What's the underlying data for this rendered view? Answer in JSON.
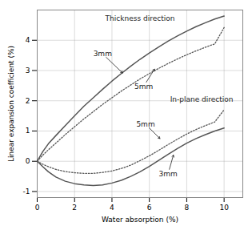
{
  "chart_data": {
    "type": "line",
    "xlabel": "Water absorption (%)",
    "ylabel": "Linear expansion coefficient (%)",
    "xlim": [
      0,
      11
    ],
    "ylim": [
      -1.2,
      5.0
    ],
    "xticks": [
      0,
      2,
      4,
      6,
      8,
      10
    ],
    "yticks": [
      -1,
      0,
      1,
      2,
      3,
      4
    ],
    "grid": true,
    "x": [
      0,
      0.3,
      0.6,
      1.0,
      1.5,
      2.0,
      2.5,
      3.0,
      3.5,
      4.0,
      4.5,
      5.0,
      5.5,
      6.0,
      6.5,
      7.0,
      7.5,
      8.0,
      8.5,
      9.0,
      9.5,
      10.0
    ],
    "series": [
      {
        "color": "#555555",
        "line_style": "solid",
        "values": [
          0,
          0.32,
          0.58,
          0.85,
          1.18,
          1.5,
          1.82,
          2.1,
          2.38,
          2.65,
          2.9,
          3.14,
          3.37,
          3.58,
          3.78,
          3.97,
          4.14,
          4.3,
          4.45,
          4.58,
          4.7,
          4.8
        ]
      },
      {
        "color": "#555555",
        "line_style": "dotted",
        "values": [
          0,
          0.2,
          0.38,
          0.6,
          0.88,
          1.14,
          1.4,
          1.64,
          1.88,
          2.1,
          2.32,
          2.52,
          2.72,
          2.9,
          3.07,
          3.23,
          3.38,
          3.52,
          3.65,
          3.77,
          3.88,
          4.42
        ]
      },
      {
        "color": "#555555",
        "line_style": "solid",
        "values": [
          0,
          -0.18,
          -0.35,
          -0.52,
          -0.66,
          -0.74,
          -0.78,
          -0.8,
          -0.78,
          -0.72,
          -0.63,
          -0.5,
          -0.35,
          -0.17,
          0.03,
          0.23,
          0.42,
          0.6,
          0.75,
          0.88,
          1.0,
          1.1
        ]
      },
      {
        "color": "#555555",
        "line_style": "dotted",
        "values": [
          0,
          -0.1,
          -0.18,
          -0.27,
          -0.34,
          -0.38,
          -0.4,
          -0.4,
          -0.37,
          -0.32,
          -0.24,
          -0.13,
          0.02,
          0.18,
          0.36,
          0.55,
          0.73,
          0.9,
          1.05,
          1.18,
          1.3,
          1.7
        ]
      }
    ],
    "annotations": [
      {
        "text": "Thickness direction",
        "x": 5.5,
        "y": 4.72
      },
      {
        "text": "3mm",
        "x": 3.5,
        "y": 3.55,
        "arrow_to": [
          4.6,
          2.9
        ]
      },
      {
        "text": "5mm",
        "x": 5.7,
        "y": 2.48,
        "arrow_to": [
          6.3,
          3.07
        ]
      },
      {
        "text": "In-plane direction",
        "x": 8.8,
        "y": 2.05
      },
      {
        "text": "5mm",
        "x": 5.8,
        "y": 1.22,
        "arrow_to": [
          6.6,
          0.73
        ]
      },
      {
        "text": "3mm",
        "x": 7.0,
        "y": -0.42,
        "arrow_to": [
          7.3,
          0.23
        ]
      }
    ]
  }
}
